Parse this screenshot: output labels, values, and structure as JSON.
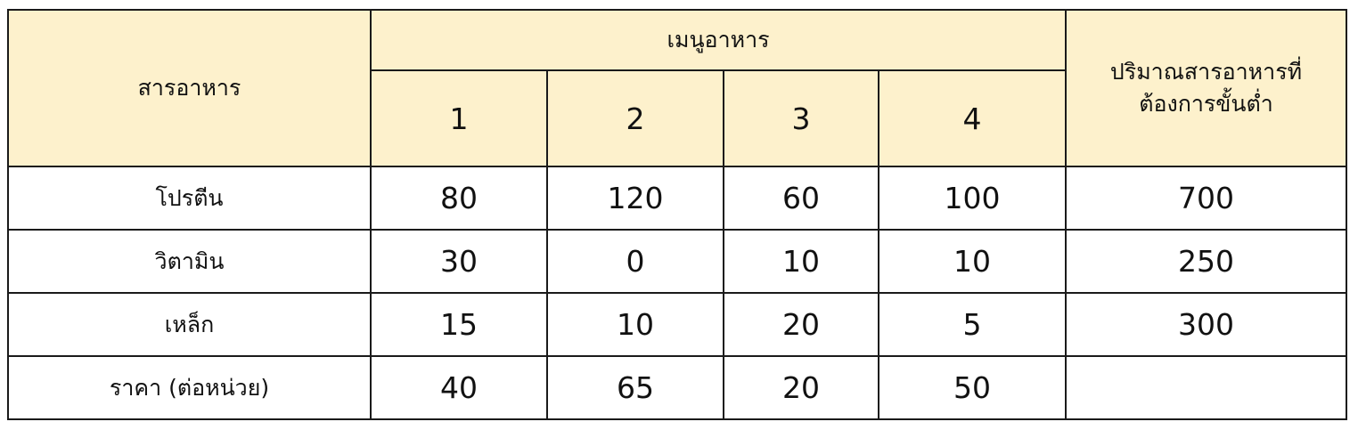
{
  "table": {
    "header": {
      "nutrient_label": "สารอาหาร",
      "menu_group_label": "เมนูอาหาร",
      "menu_numbers": [
        "1",
        "2",
        "3",
        "4"
      ],
      "minimum_label_line1": "ปริมาณสารอาหารที่",
      "minimum_label_line2": "ต้องการขั้นต่ำ"
    },
    "rows": [
      {
        "label": "โปรตีน",
        "values": [
          "80",
          "120",
          "60",
          "100"
        ],
        "minimum": "700"
      },
      {
        "label": "วิตามิน",
        "values": [
          "30",
          "0",
          "10",
          "10"
        ],
        "minimum": "250"
      },
      {
        "label": "เหล็ก",
        "values": [
          "15",
          "10",
          "20",
          "5"
        ],
        "minimum": "300"
      },
      {
        "label": "ราคา (ต่อหน่วย)",
        "values": [
          "40",
          "65",
          "20",
          "50"
        ],
        "minimum": ""
      }
    ],
    "colors": {
      "header_background": "#fdf1cc",
      "border": "#1a1a1a"
    }
  }
}
